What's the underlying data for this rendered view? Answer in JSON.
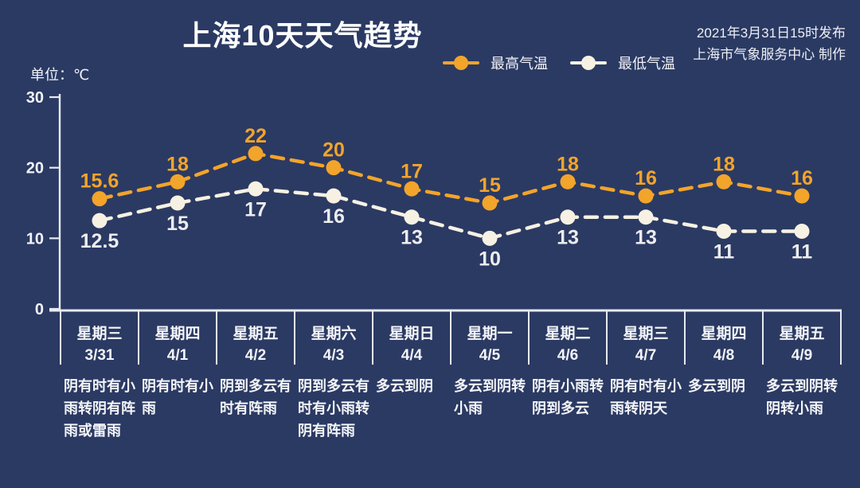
{
  "title": "上海10天天气趋势",
  "publish": {
    "line1": "2021年3月31日15时发布",
    "line2": "上海市气象服务中心 制作"
  },
  "unit_label": "单位：℃",
  "legend": {
    "max_label": "最高气温",
    "min_label": "最低气温"
  },
  "colors": {
    "background": "#2B3A63",
    "max_series": "#F2A42B",
    "min_series": "#F6F1E2",
    "max_value_text": "#F2A42B",
    "min_value_text": "#EDEDEF",
    "axis": "#E8EAF0"
  },
  "chart_data": {
    "type": "line",
    "title": "上海10天天气趋势",
    "ylabel": "℃",
    "ylim": [
      0,
      30
    ],
    "yticks": [
      0,
      10,
      20,
      30
    ],
    "grid": false,
    "legend_position": "top-center",
    "line_style": "dashed",
    "categories": [
      {
        "weekday": "星期三",
        "date": "3/31",
        "desc": "阴有时有小雨转阴有阵雨或雷雨"
      },
      {
        "weekday": "星期四",
        "date": "4/1",
        "desc": "阴有时有小雨"
      },
      {
        "weekday": "星期五",
        "date": "4/2",
        "desc": "阴到多云有时有阵雨"
      },
      {
        "weekday": "星期六",
        "date": "4/3",
        "desc": "阴到多云有时有小雨转阴有阵雨"
      },
      {
        "weekday": "星期日",
        "date": "4/4",
        "desc": "多云到阴"
      },
      {
        "weekday": "星期一",
        "date": "4/5",
        "desc": "多云到阴转小雨"
      },
      {
        "weekday": "星期二",
        "date": "4/6",
        "desc": "阴有小雨转阴到多云"
      },
      {
        "weekday": "星期三",
        "date": "4/7",
        "desc": "阴有时有小雨转阴天"
      },
      {
        "weekday": "星期四",
        "date": "4/8",
        "desc": "多云到阴"
      },
      {
        "weekday": "星期五",
        "date": "4/9",
        "desc": "多云到阴转阴转小雨"
      }
    ],
    "series": [
      {
        "name": "最高气温",
        "values": [
          15.6,
          18,
          22,
          20,
          17,
          15,
          18,
          16,
          18,
          16
        ]
      },
      {
        "name": "最低气温",
        "values": [
          12.5,
          15,
          17,
          16,
          13,
          10,
          13,
          13,
          11,
          11
        ]
      }
    ]
  }
}
